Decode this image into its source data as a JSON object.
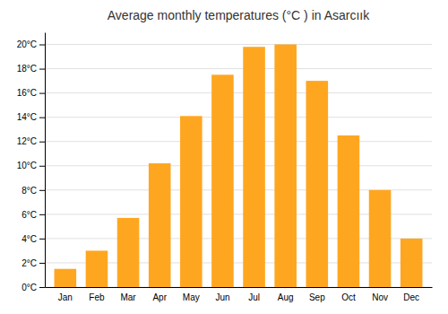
{
  "chart_data": {
    "type": "bar",
    "title": "Average monthly temperatures (°C ) in Asarcıık",
    "categories": [
      "Jan",
      "Feb",
      "Mar",
      "Apr",
      "May",
      "Jun",
      "Jul",
      "Aug",
      "Sep",
      "Oct",
      "Nov",
      "Dec"
    ],
    "values": [
      1.5,
      3.0,
      5.7,
      10.2,
      14.1,
      17.5,
      19.8,
      20.0,
      17.0,
      12.5,
      8.0,
      4.0
    ],
    "color": "#FFA620",
    "ylim": [
      0,
      21
    ],
    "yticks": [
      {
        "value": 0,
        "label": "0°C"
      },
      {
        "value": 2,
        "label": "2°C"
      },
      {
        "value": 4,
        "label": "4°C"
      },
      {
        "value": 6,
        "label": "6°C"
      },
      {
        "value": 8,
        "label": "8°C"
      },
      {
        "value": 10,
        "label": "10°C"
      },
      {
        "value": 12,
        "label": "12°C"
      },
      {
        "value": 14,
        "label": "14°C"
      },
      {
        "value": 16,
        "label": "16°C"
      },
      {
        "value": 18,
        "label": "18°C"
      },
      {
        "value": 20,
        "label": "20°C"
      }
    ],
    "grid": true
  }
}
